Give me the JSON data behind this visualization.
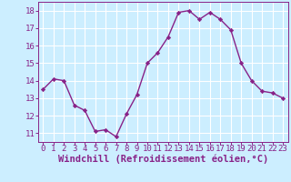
{
  "x": [
    0,
    1,
    2,
    3,
    4,
    5,
    6,
    7,
    8,
    9,
    10,
    11,
    12,
    13,
    14,
    15,
    16,
    17,
    18,
    19,
    20,
    21,
    22,
    23
  ],
  "y": [
    13.5,
    14.1,
    14.0,
    12.6,
    12.3,
    11.1,
    11.2,
    10.8,
    12.1,
    13.2,
    15.0,
    15.6,
    16.5,
    17.9,
    18.0,
    17.5,
    17.9,
    17.5,
    16.9,
    15.0,
    14.0,
    13.4,
    13.3,
    13.0
  ],
  "line_color": "#882288",
  "marker": "D",
  "marker_size": 2.2,
  "line_width": 1.0,
  "xlabel": "Windchill (Refroidissement éolien,°C)",
  "xlabel_fontsize": 7.5,
  "bg_color": "#cceeff",
  "grid_color": "#ffffff",
  "tick_color": "#882288",
  "tick_fontsize": 6.5,
  "ylim": [
    10.5,
    18.5
  ],
  "yticks": [
    11,
    12,
    13,
    14,
    15,
    16,
    17,
    18
  ],
  "xlim": [
    -0.5,
    23.5
  ],
  "xticks": [
    0,
    1,
    2,
    3,
    4,
    5,
    6,
    7,
    8,
    9,
    10,
    11,
    12,
    13,
    14,
    15,
    16,
    17,
    18,
    19,
    20,
    21,
    22,
    23
  ]
}
